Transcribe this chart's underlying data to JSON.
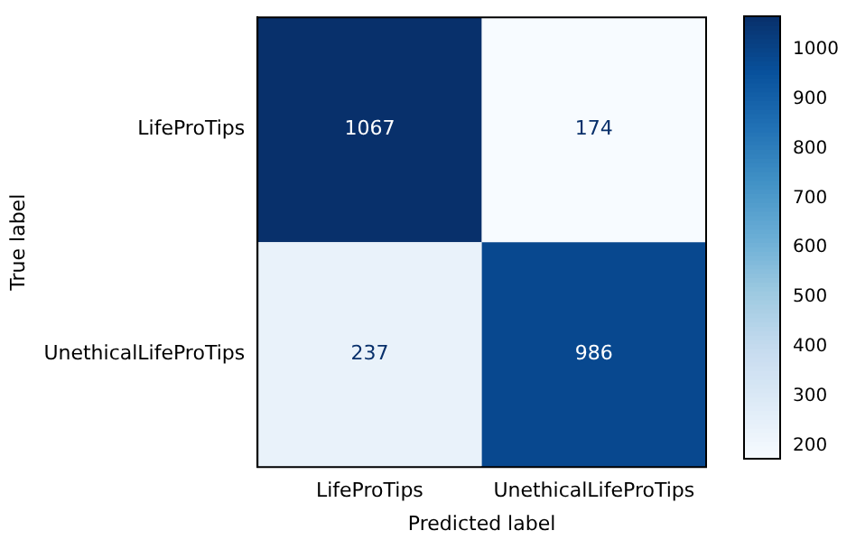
{
  "chart_data": {
    "type": "heatmap",
    "xlabel": "Predicted label",
    "ylabel": "True label",
    "categories": [
      "LifeProTips",
      "UnethicalLifeProTips"
    ],
    "y_categories": [
      "LifeProTips",
      "UnethicalLifeProTips"
    ],
    "cells": [
      [
        1067,
        174
      ],
      [
        237,
        986
      ]
    ],
    "data_labels": true,
    "clim": [
      174,
      1067
    ],
    "cticks": [
      200,
      300,
      400,
      500,
      600,
      700,
      800,
      900,
      1000
    ]
  }
}
